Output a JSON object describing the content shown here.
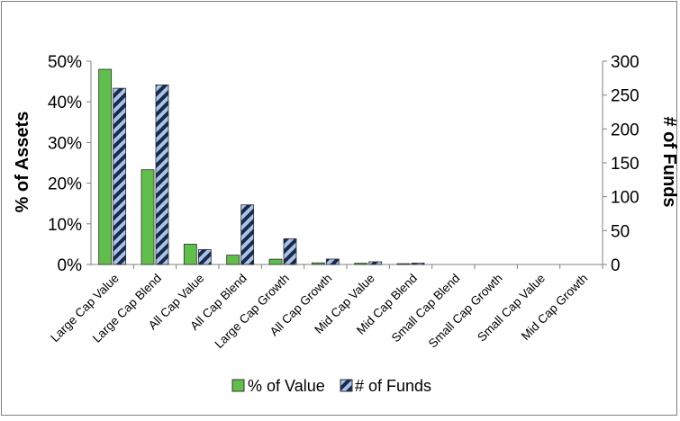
{
  "chart_data": {
    "type": "bar",
    "title": "",
    "xlabel": "",
    "ylabel": "% of Assets",
    "y2label": "# of Funds",
    "categories": [
      "Large Cap Value",
      "Large Cap Blend",
      "All Cap Value",
      "All Cap Blend",
      "Large Cap Growth",
      "All Cap Growth",
      "Mid Cap Value",
      "Mid Cap Blend",
      "Small Cap Blend",
      "Small Cap Growth",
      "Small Cap Value",
      "Mid Cap Growth"
    ],
    "series": [
      {
        "name": "% of Value",
        "axis": "left",
        "values": [
          48,
          23.3,
          5,
          2.3,
          1.3,
          0.4,
          0.3,
          0.2,
          0,
          0,
          0,
          0
        ]
      },
      {
        "name": "# of Funds",
        "axis": "right",
        "values": [
          260,
          265,
          22,
          88,
          38,
          8,
          4,
          2,
          0,
          0,
          0,
          0
        ]
      }
    ],
    "ylim": [
      0,
      50
    ],
    "y2lim": [
      0,
      300
    ],
    "y_ticks": [
      "0%",
      "10%",
      "20%",
      "30%",
      "40%",
      "50%"
    ],
    "y2_ticks": [
      "0",
      "50",
      "100",
      "150",
      "200",
      "250",
      "300"
    ],
    "legend_position": "bottom",
    "grid": false,
    "colors": {
      "series1": "#5fbf4a",
      "series2_light": "#a9c4ea",
      "series2_dark": "#1a2a4a"
    }
  }
}
